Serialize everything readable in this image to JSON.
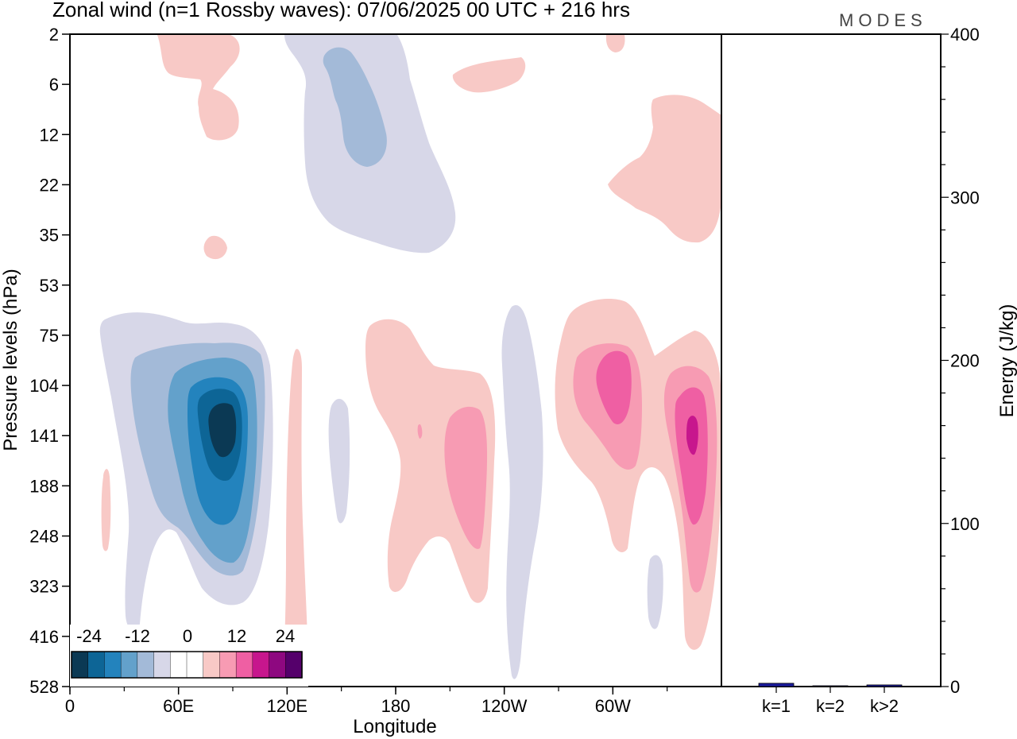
{
  "chart_data": [
    {
      "type": "heatmap",
      "title": "Zonal wind (n=1 Rossby waves):  07/06/2025  00 UTC  + 216 hrs",
      "xlabel": "Longitude",
      "ylabel": "Pressure levels (hPa)",
      "x_ticks": [
        "0",
        "60E",
        "120E",
        "180",
        "120W",
        "60W"
      ],
      "x_tick_values_deg": [
        0,
        60,
        120,
        180,
        240,
        300
      ],
      "xlim_deg": [
        0,
        360
      ],
      "y_ticks": [
        "2",
        "6",
        "12",
        "22",
        "35",
        "53",
        "75",
        "104",
        "141",
        "188",
        "248",
        "323",
        "416",
        "528"
      ],
      "grid": false,
      "colorbar": {
        "labels": [
          "-24",
          "-12",
          "0",
          "12",
          "24"
        ],
        "colors": [
          "#0b3954",
          "#0d6596",
          "#2383bd",
          "#63a1cb",
          "#a3bad8",
          "#d7d7e8",
          "#ffffff",
          "#ffffff",
          "#f8c9c6",
          "#f79bb3",
          "#ef5fa3",
          "#c7168d",
          "#8e0880",
          "#55006b"
        ],
        "location": "bottom-left"
      },
      "features": [
        {
          "sign": "negative",
          "lon_center": 88,
          "level_center": "141",
          "peak_class": "-24 to -20"
        },
        {
          "sign": "negative",
          "lon_center": 205,
          "level_center": "22",
          "peak_class": "-8 to -4"
        },
        {
          "sign": "positive",
          "lon_center": 295,
          "level_center": "104",
          "peak_class": "8 to 12"
        },
        {
          "sign": "positive",
          "lon_center": 341,
          "level_center": "141",
          "peak_class": "12 to 16"
        },
        {
          "sign": "positive",
          "lon_center": 226,
          "level_center": "141",
          "peak_class": "4 to 8"
        }
      ]
    },
    {
      "type": "bar",
      "ylabel": "Energy (J/kg)",
      "categories": [
        "k=1",
        "k=2",
        "k>2"
      ],
      "values": [
        2,
        0.5,
        1
      ],
      "ylim": [
        0,
        400
      ],
      "y_ticks": [
        "0",
        "100",
        "200",
        "300",
        "400"
      ],
      "colors": [
        "#1a1a9c",
        "#1a1a9c",
        "#1a1a9c"
      ]
    }
  ],
  "logo": "MODES"
}
